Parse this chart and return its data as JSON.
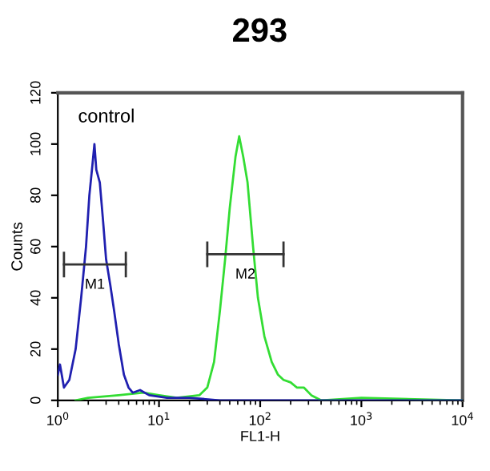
{
  "chart_data": {
    "type": "line",
    "title": "293",
    "xlabel": "FL1-H",
    "ylabel": "Counts",
    "log": "x",
    "xlim": [
      1,
      10000
    ],
    "ylim": [
      0,
      120
    ],
    "xticks": [
      {
        "value": 1,
        "label": "10$^{0}$"
      },
      {
        "value": 10,
        "label": "10$^{1}$"
      },
      {
        "value": 100,
        "label": "10$^{2}$"
      },
      {
        "value": 1000,
        "label": "10$^{3}$"
      },
      {
        "value": 10000,
        "label": "10$^{4}$"
      }
    ],
    "yticks": [
      0,
      20,
      40,
      60,
      80,
      100,
      120
    ],
    "grid": false,
    "legend": false,
    "marker": "none",
    "line_style": "solid",
    "annotations": [
      "control"
    ],
    "series": [
      {
        "name": "M1",
        "color": "#333333",
        "x": [
          1.15,
          4.7
        ],
        "values": [
          53,
          53
        ],
        "errors": [
          5,
          5
        ]
      },
      {
        "name": "M2",
        "color": "#333333",
        "x": [
          30,
          170
        ],
        "values": [
          57,
          57
        ],
        "errors": [
          5,
          5
        ]
      },
      {
        "color": "#2020b0",
        "x": [
          1.0,
          1.05,
          1.15,
          1.3,
          1.5,
          1.7,
          1.9,
          2.05,
          2.2,
          2.3,
          2.4,
          2.6,
          2.8,
          3.0,
          3.3,
          3.6,
          4.0,
          4.5,
          5.0,
          5.5,
          6.5,
          8,
          12,
          20,
          40,
          100,
          1000,
          10000
        ],
        "values": [
          10,
          14,
          5,
          8,
          20,
          40,
          60,
          80,
          92,
          100,
          90,
          85,
          70,
          55,
          45,
          35,
          22,
          10,
          5,
          3,
          4,
          2,
          1,
          1,
          0,
          0,
          0,
          0
        ]
      },
      {
        "color": "#33dd33",
        "x": [
          1.5,
          2,
          4,
          7,
          10,
          15,
          25,
          30,
          35,
          40,
          45,
          50,
          57,
          62,
          68,
          75,
          85,
          95,
          110,
          130,
          150,
          170,
          200,
          230,
          270,
          320,
          400,
          1000,
          10000
        ],
        "values": [
          0,
          1,
          2,
          3,
          2,
          1,
          2,
          5,
          15,
          35,
          55,
          75,
          95,
          103,
          95,
          85,
          60,
          40,
          25,
          15,
          10,
          8,
          7,
          5,
          5,
          2,
          0,
          1,
          0
        ]
      }
    ]
  }
}
